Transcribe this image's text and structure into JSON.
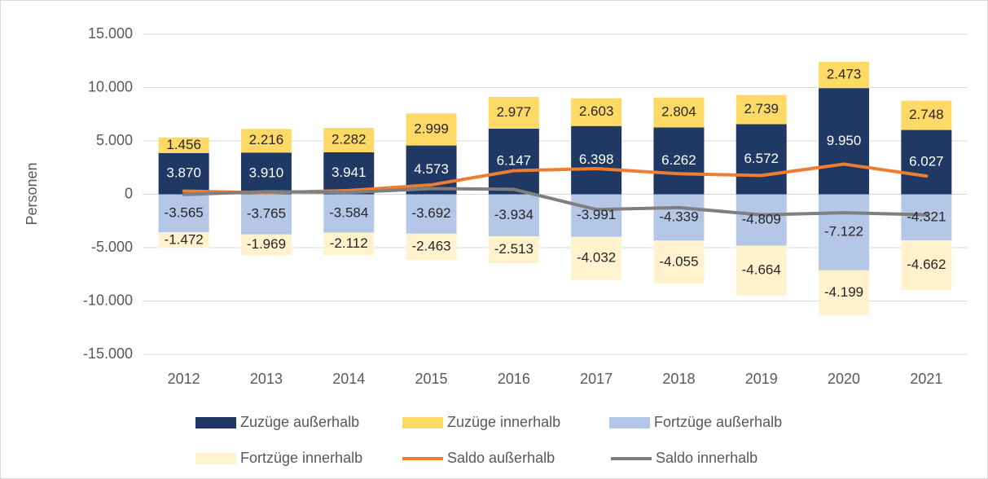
{
  "chart_data": {
    "type": "bar",
    "stacked": true,
    "y_label": "Personen",
    "categories": [
      "2012",
      "2013",
      "2014",
      "2015",
      "2016",
      "2017",
      "2018",
      "2019",
      "2020",
      "2021"
    ],
    "ylim": [
      -15000,
      15000
    ],
    "yticks": [
      {
        "value": -15000,
        "label": "-15.000"
      },
      {
        "value": -10000,
        "label": "-10.000"
      },
      {
        "value": -5000,
        "label": "-5.000"
      },
      0,
      {
        "value": 5000,
        "label": "5.000"
      },
      {
        "value": 10000,
        "label": "10.000"
      },
      {
        "value": 15000,
        "label": "15.000"
      }
    ],
    "grid": true,
    "legend": "bottom",
    "series": [
      {
        "name": "Zuzüge außerhalb",
        "type": "bar",
        "color": "#1f3864",
        "label_color": "#ffffff",
        "values": [
          3870,
          3910,
          3941,
          4573,
          6147,
          6398,
          6262,
          6572,
          9950,
          6027
        ],
        "value_labels": [
          "3.870",
          "3.910",
          "3.941",
          "4.573",
          "6.147",
          "6.398",
          "6.262",
          "6.572",
          "9.950",
          "6.027"
        ]
      },
      {
        "name": "Zuzüge innerhalb",
        "type": "bar",
        "color": "#ffd966",
        "label_color": "#262626",
        "values": [
          1456,
          2216,
          2282,
          2999,
          2977,
          2603,
          2804,
          2739,
          2473,
          2748
        ],
        "value_labels": [
          "1.456",
          "2.216",
          "2.282",
          "2.999",
          "2.977",
          "2.603",
          "2.804",
          "2.739",
          "2.473",
          "2.748"
        ]
      },
      {
        "name": "Fortzüge außerhalb",
        "type": "bar",
        "color": "#b4c7e7",
        "label_color": "#262626",
        "values": [
          -3565,
          -3765,
          -3584,
          -3692,
          -3934,
          -3991,
          -4339,
          -4809,
          -7122,
          -4321
        ],
        "value_labels": [
          "-3.565",
          "-3.765",
          "-3.584",
          "-3.692",
          "-3.934",
          "-3.991",
          "-4.339",
          "-4.809",
          "-7.122",
          "-4.321"
        ]
      },
      {
        "name": "Fortzüge innerhalb",
        "type": "bar",
        "color": "#fff2cc",
        "label_color": "#262626",
        "values": [
          -1472,
          -1969,
          -2112,
          -2463,
          -2513,
          -4032,
          -4055,
          -4664,
          -4199,
          -4662
        ],
        "value_labels": [
          "-1.472",
          "-1.969",
          "-2.112",
          "-2.463",
          "-2.513",
          "-4.032",
          "-4.055",
          "-4.664",
          "-4.199",
          "-4.662"
        ]
      },
      {
        "name": "Saldo außerhalb",
        "type": "line",
        "color": "#ed7d31",
        "values": [
          305,
          145,
          357,
          881,
          2213,
          2407,
          1923,
          1763,
          2828,
          1706
        ]
      },
      {
        "name": "Saldo innerhalb",
        "type": "line",
        "color": "#7f7f7f",
        "values": [
          -16,
          247,
          170,
          536,
          464,
          -1429,
          -1251,
          -1925,
          -1726,
          -1914
        ]
      }
    ]
  }
}
